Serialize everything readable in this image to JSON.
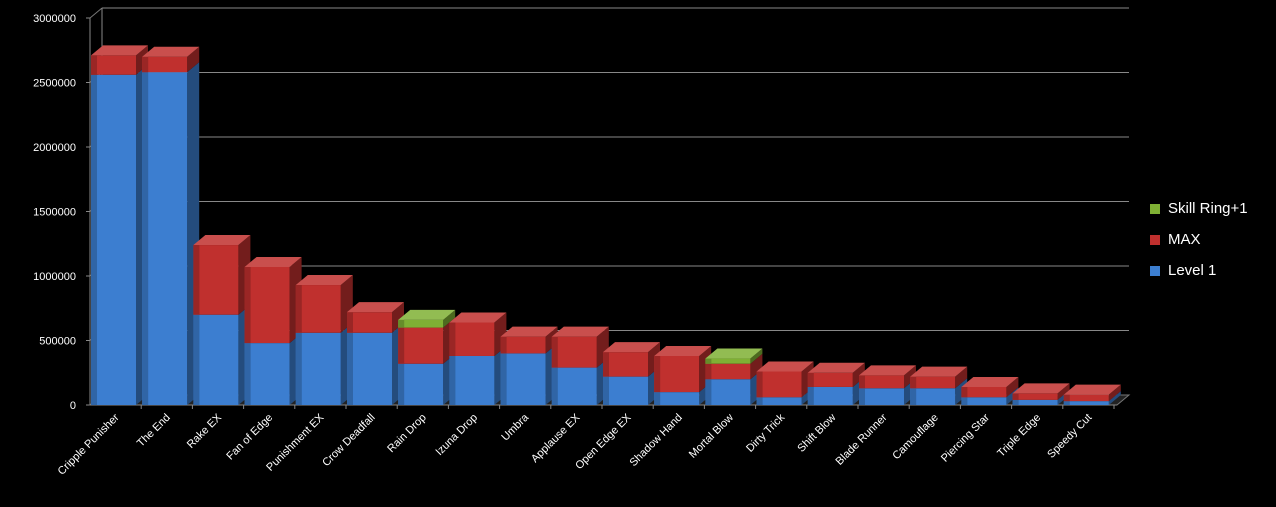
{
  "chart_data": {
    "type": "bar",
    "stacked": true,
    "categories": [
      "Cripple Punisher",
      "The End",
      "Rake EX",
      "Fan of Edge",
      "Punishment EX",
      "Crow Deadfall",
      "Rain Drop",
      "Izuna Drop",
      "Umbra",
      "Applause EX",
      "Open Edge EX",
      "Shadow Hand",
      "Mortal Blow",
      "Dirty Trick",
      "Shift Blow",
      "Blade Runner",
      "Camouflage",
      "Piercing Star",
      "Triple Edge",
      "Speedy Cut"
    ],
    "series": [
      {
        "name": "Level 1",
        "color": "#3c7ed0",
        "values": [
          2560000,
          2580000,
          700000,
          480000,
          560000,
          560000,
          320000,
          380000,
          400000,
          290000,
          220000,
          100000,
          200000,
          60000,
          140000,
          130000,
          130000,
          60000,
          40000,
          30000
        ]
      },
      {
        "name": "MAX",
        "color": "#c0302e",
        "values": [
          150000,
          120000,
          540000,
          590000,
          370000,
          160000,
          280000,
          260000,
          130000,
          240000,
          190000,
          280000,
          120000,
          200000,
          110000,
          100000,
          90000,
          80000,
          50000,
          50000
        ]
      },
      {
        "name": "Skill Ring+1",
        "color": "#7fb034",
        "values": [
          0,
          0,
          0,
          0,
          0,
          0,
          60000,
          0,
          0,
          0,
          0,
          0,
          40000,
          0,
          0,
          0,
          0,
          0,
          0,
          0
        ]
      }
    ],
    "ylim": [
      0,
      3000000
    ],
    "yticks": [
      "0",
      "500000",
      "1000000",
      "1500000",
      "2000000",
      "2500000",
      "3000000"
    ],
    "grid": true,
    "legend_position": "right"
  }
}
